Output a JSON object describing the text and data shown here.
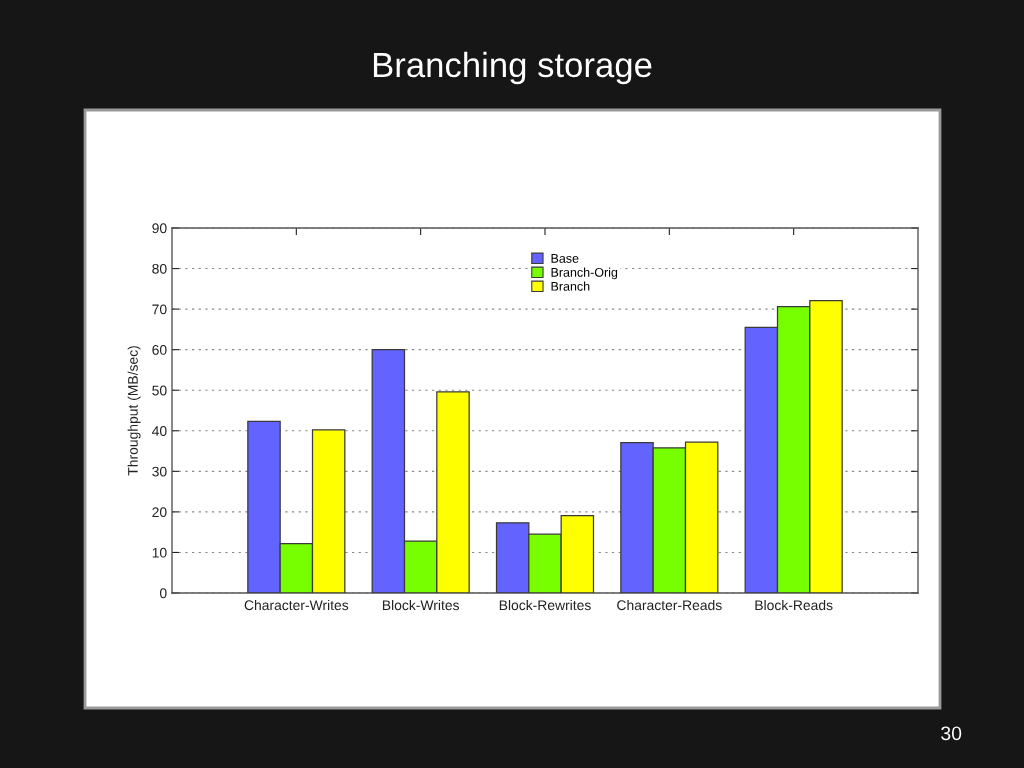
{
  "chart_data": {
    "type": "bar",
    "title": "Branching storage",
    "ylabel": "Throughput (MB/sec)",
    "categories": [
      "Character-Writes",
      "Block-Writes",
      "Block-Rewrites",
      "Character-Reads",
      "Block-Reads"
    ],
    "series": [
      {
        "name": "Base",
        "color": "#6363ff",
        "values": [
          42.3,
          60.0,
          17.3,
          37.1,
          65.5
        ]
      },
      {
        "name": "Branch-Orig",
        "color": "#77ff00",
        "values": [
          12.2,
          12.8,
          14.5,
          35.8,
          70.6
        ]
      },
      {
        "name": "Branch",
        "color": "#ffff00",
        "values": [
          40.2,
          49.6,
          19.1,
          37.2,
          72.1
        ]
      }
    ],
    "ylim": [
      0,
      90
    ],
    "yticks": [
      0,
      10,
      20,
      30,
      40,
      50,
      60,
      70,
      80,
      90
    ],
    "grid": "y",
    "legend": "top",
    "annotations": [
      "30"
    ]
  }
}
